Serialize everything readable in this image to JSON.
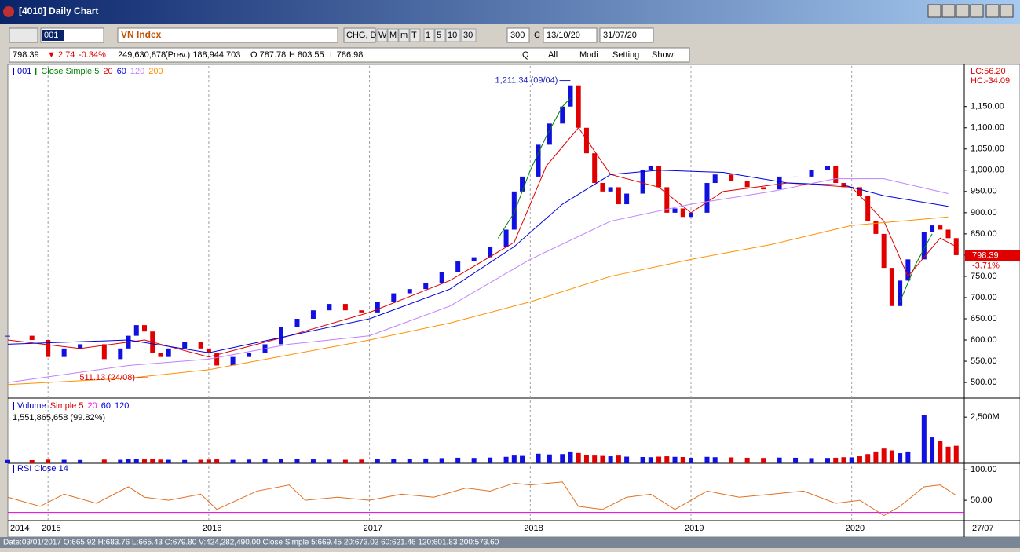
{
  "window": {
    "title": "[4010] Daily Chart"
  },
  "toolbar": {
    "code": "001",
    "name": "VN Index",
    "period": "CHG, D",
    "buttons": [
      "W",
      "M",
      "m",
      "T",
      "1",
      "5",
      "10",
      "30"
    ],
    "count": "300",
    "c": "C",
    "from": "13/10/20",
    "to": "31/07/20"
  },
  "info": {
    "price": "798.39",
    "change": "▼ 2.74",
    "pct": "-0.34%",
    "volume": "249,630,878",
    "prev": "(Prev.) 188,944,703",
    "open": "O 787.78",
    "high": "H 803.55",
    "low": "L 786.98",
    "buttons": [
      "Q",
      "All",
      "Modi",
      "Setting",
      "Show"
    ]
  },
  "chart_data": [
    {
      "type": "candlestick",
      "legend": [
        {
          "name": "001",
          "color": "#0000c0"
        },
        {
          "name": "Close Simple 5",
          "color": "#008000"
        },
        {
          "name": "20",
          "color": "#e00000"
        },
        {
          "name": "60",
          "color": "#0000e0"
        },
        {
          "name": "120",
          "color": "#c080ff"
        },
        {
          "name": "200",
          "color": "#ff9000"
        }
      ],
      "up_color": "#1010e0",
      "down_color": "#e00000",
      "x": [
        2014.75,
        2014.9,
        2015.0,
        2015.1,
        2015.2,
        2015.35,
        2015.45,
        2015.5,
        2015.55,
        2015.6,
        2015.65,
        2015.7,
        2015.75,
        2015.85,
        2015.95,
        2016.0,
        2016.05,
        2016.15,
        2016.25,
        2016.35,
        2016.45,
        2016.55,
        2016.65,
        2016.75,
        2016.85,
        2016.95,
        2017.05,
        2017.15,
        2017.25,
        2017.35,
        2017.45,
        2017.55,
        2017.65,
        2017.75,
        2017.85,
        2017.9,
        2017.95,
        2018.05,
        2018.12,
        2018.2,
        2018.25,
        2018.3,
        2018.35,
        2018.4,
        2018.45,
        2018.5,
        2018.55,
        2018.6,
        2018.7,
        2018.75,
        2018.8,
        2018.85,
        2018.9,
        2018.95,
        2019.0,
        2019.1,
        2019.15,
        2019.25,
        2019.35,
        2019.45,
        2019.55,
        2019.65,
        2019.75,
        2019.85,
        2019.9,
        2019.95,
        2020.0,
        2020.05,
        2020.1,
        2020.15,
        2020.2,
        2020.25,
        2020.3,
        2020.35,
        2020.45,
        2020.5,
        2020.55,
        2020.6,
        2020.65
      ],
      "values": [
        610,
        600,
        560,
        580,
        590,
        555,
        580,
        610,
        635,
        620,
        570,
        560,
        580,
        595,
        580,
        570,
        540,
        560,
        570,
        590,
        630,
        650,
        670,
        685,
        670,
        665,
        690,
        710,
        720,
        735,
        760,
        785,
        795,
        820,
        860,
        950,
        985,
        1060,
        1110,
        1150,
        1200,
        1100,
        1040,
        970,
        950,
        960,
        920,
        945,
        1000,
        1010,
        960,
        900,
        910,
        890,
        900,
        970,
        990,
        975,
        960,
        955,
        985,
        985,
        1000,
        1010,
        970,
        960,
        960,
        940,
        880,
        850,
        770,
        680,
        740,
        790,
        855,
        870,
        860,
        840,
        800
      ],
      "series": [
        {
          "name": "Close Simple 5",
          "color": "#008000",
          "x": [
            2017.8,
            2017.9,
            2018.0,
            2018.1,
            2018.2,
            2018.25,
            2020.22,
            2020.3,
            2020.4,
            2020.5
          ],
          "values": [
            840,
            900,
            1000,
            1080,
            1150,
            1170,
            null,
            690,
            780,
            850
          ]
        },
        {
          "name": "20",
          "color": "#e00000",
          "x": [
            2014.75,
            2015.2,
            2015.6,
            2016.0,
            2016.5,
            2017.0,
            2017.5,
            2017.9,
            2018.1,
            2018.3,
            2018.5,
            2018.8,
            2019.0,
            2019.2,
            2019.6,
            2020.0,
            2020.2,
            2020.35,
            2020.55,
            2020.65
          ],
          "values": [
            600,
            580,
            600,
            560,
            610,
            665,
            740,
            830,
            1010,
            1100,
            990,
            960,
            900,
            950,
            970,
            960,
            880,
            750,
            840,
            820
          ]
        },
        {
          "name": "60",
          "color": "#0000e0",
          "x": [
            2014.75,
            2015.5,
            2016.0,
            2016.5,
            2017.0,
            2017.5,
            2017.9,
            2018.2,
            2018.5,
            2018.8,
            2019.2,
            2019.6,
            2019.95,
            2020.2,
            2020.6
          ],
          "values": [
            590,
            600,
            570,
            610,
            650,
            720,
            820,
            920,
            990,
            1000,
            995,
            970,
            965,
            940,
            915
          ]
        },
        {
          "name": "120",
          "color": "#c080ff",
          "x": [
            2014.75,
            2015.5,
            2016.0,
            2016.5,
            2017.0,
            2017.5,
            2018.0,
            2018.5,
            2019.0,
            2019.5,
            2019.9,
            2020.2,
            2020.6
          ],
          "values": [
            500,
            540,
            555,
            590,
            610,
            680,
            790,
            880,
            920,
            950,
            980,
            980,
            945
          ]
        },
        {
          "name": "200",
          "color": "#ff9000",
          "x": [
            2014.75,
            2015.5,
            2016.0,
            2016.5,
            2017.0,
            2017.5,
            2018.0,
            2018.5,
            2019.0,
            2019.5,
            2020.0,
            2020.6
          ],
          "values": [
            495,
            510,
            530,
            565,
            600,
            640,
            690,
            750,
            790,
            825,
            870,
            890
          ]
        }
      ],
      "xlim": [
        2014.75,
        2020.7
      ],
      "xticks": [
        2015,
        2016,
        2017,
        2018,
        2019,
        2020
      ],
      "grid": "x",
      "ylim": [
        465,
        1242
      ],
      "yticks": [
        {
          "value": 500,
          "label": "500.00"
        },
        {
          "value": 550,
          "label": "550.00"
        },
        {
          "value": 600,
          "label": "600.00"
        },
        {
          "value": 650,
          "label": "650.00"
        },
        {
          "value": 700,
          "label": "700.00"
        },
        {
          "value": 750,
          "label": "750.00"
        },
        {
          "value": 800,
          "label": "800.00"
        },
        {
          "value": 850,
          "label": "850.00"
        },
        {
          "value": 900,
          "label": "900.00"
        },
        {
          "value": 950,
          "label": "950.00"
        },
        {
          "value": 1000,
          "label": "1,000.00"
        },
        {
          "value": 1050,
          "label": "1,050.00"
        },
        {
          "value": 1100,
          "label": "1,100.00"
        },
        {
          "value": 1150,
          "label": "1,150.00"
        }
      ],
      "annotations": [
        {
          "text": "1,211.34 (09/04)",
          "x": 2018.25,
          "y": 1211.34
        },
        {
          "text": "511.13 (24/08)",
          "x": 2015.62,
          "y": 511.13
        }
      ],
      "right_labels": [
        "LC:56.20",
        "HC:-34.09"
      ],
      "last_label": {
        "value": 798.39,
        "label": "798.39",
        "change": "-3.71%"
      }
    },
    {
      "type": "bar",
      "legend": [
        {
          "name": "Volume",
          "color": "#0000c0"
        },
        {
          "name": "Simple 5",
          "color": "#e00000"
        },
        {
          "name": "20",
          "color": "#ff00ff"
        },
        {
          "name": "60",
          "color": "#0000e0"
        },
        {
          "name": "120",
          "color": "#0000e0"
        }
      ],
      "subtitle": "1,551,865,658 (99.82%)",
      "values": [
        180,
        170,
        200,
        190,
        180,
        200,
        190,
        220,
        230,
        210,
        250,
        200,
        190,
        180,
        190,
        200,
        210,
        190,
        200,
        210,
        230,
        220,
        210,
        200,
        190,
        200,
        230,
        240,
        250,
        260,
        280,
        300,
        290,
        310,
        350,
        420,
        400,
        520,
        480,
        500,
        600,
        560,
        450,
        420,
        400,
        380,
        420,
        360,
        340,
        330,
        360,
        380,
        350,
        340,
        300,
        350,
        330,
        320,
        300,
        290,
        310,
        300,
        280,
        290,
        300,
        330,
        320,
        380,
        500,
        600,
        800,
        700,
        550,
        600,
        2600,
        1400,
        1200,
        900,
        950
      ],
      "ylim": [
        0,
        3400
      ],
      "yticks": [
        {
          "value": 2500,
          "label": "2,500M"
        }
      ]
    },
    {
      "type": "line",
      "legend": [
        {
          "name": "RSI Close 14",
          "color": "#0000c0"
        }
      ],
      "color": "#e07020",
      "level_color": "#e000e0",
      "x": [
        2014.75,
        2014.95,
        2015.1,
        2015.3,
        2015.5,
        2015.6,
        2015.75,
        2015.95,
        2016.05,
        2016.3,
        2016.5,
        2016.6,
        2016.8,
        2017.0,
        2017.2,
        2017.4,
        2017.6,
        2017.75,
        2017.9,
        2018.0,
        2018.2,
        2018.3,
        2018.45,
        2018.6,
        2018.75,
        2018.9,
        2019.1,
        2019.3,
        2019.5,
        2019.7,
        2019.9,
        2020.05,
        2020.2,
        2020.3,
        2020.45,
        2020.55,
        2020.65
      ],
      "values": [
        55,
        40,
        60,
        45,
        72,
        55,
        50,
        60,
        35,
        65,
        75,
        50,
        55,
        50,
        60,
        55,
        70,
        65,
        78,
        75,
        80,
        40,
        35,
        55,
        60,
        35,
        65,
        55,
        60,
        65,
        45,
        50,
        25,
        40,
        72,
        75,
        58
      ],
      "levels": [
        70,
        30
      ],
      "ylim": [
        18,
        108
      ],
      "yticks": [
        {
          "value": 100,
          "label": "100.00"
        },
        {
          "value": 50,
          "label": "50.00"
        }
      ],
      "x_start_label": "2014",
      "x_end_label": "27/07"
    }
  ],
  "status": "Date:03/01/2017  O:665.92  H:683.76  L:665.43  C:679.80  V:424,282,490.00  Close Simple 5:669.45  20:673.02  60:621.46  120:601.83  200:573.60"
}
